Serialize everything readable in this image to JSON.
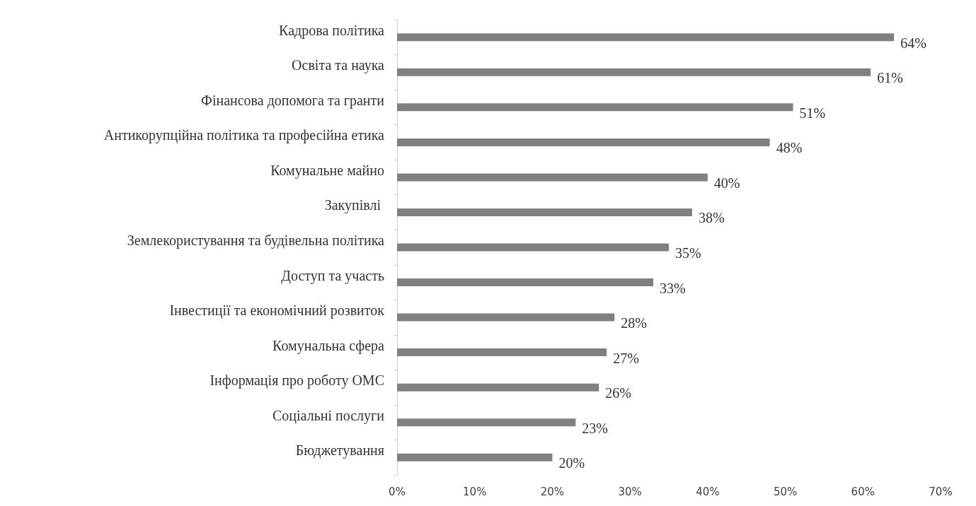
{
  "chart_data": {
    "type": "bar",
    "orientation": "horizontal",
    "categories": [
      "Кадрова політика",
      "Освіта та наука",
      "Фінансова допомога та гранти",
      "Антикорупційна політика та професійна етика",
      "Комунальне майно",
      "Закупівлі ",
      "Землекористування та будівельна політика",
      "Доступ та участь",
      "Інвестиції та економічний розвиток",
      "Комунальна сфера",
      "Інформація про роботу ОМС",
      "Соціальні послуги",
      "Бюджетування"
    ],
    "values": [
      64,
      61,
      51,
      48,
      40,
      38,
      35,
      33,
      28,
      27,
      26,
      23,
      20
    ],
    "value_labels": [
      "64%",
      "61%",
      "51%",
      "48%",
      "40%",
      "38%",
      "35%",
      "33%",
      "28%",
      "27%",
      "26%",
      "23%",
      "20%"
    ],
    "color": "#808080",
    "xlim": [
      0,
      70
    ],
    "xticks": [
      {
        "value": 0,
        "label": "0%"
      },
      {
        "value": 10,
        "label": "10%"
      },
      {
        "value": 20,
        "label": "20%"
      },
      {
        "value": 30,
        "label": "30%"
      },
      {
        "value": 40,
        "label": "40%"
      },
      {
        "value": 50,
        "label": "50%"
      },
      {
        "value": 60,
        "label": "60%"
      },
      {
        "value": 70,
        "label": "70%"
      }
    ]
  }
}
